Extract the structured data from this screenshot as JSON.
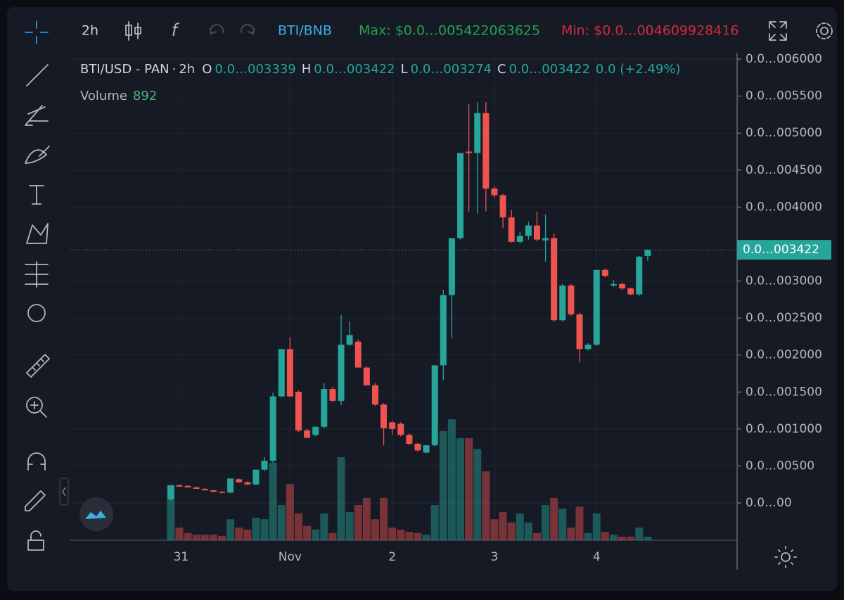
{
  "toolbar": {
    "interval": "2h",
    "pair": "BTI/BNB",
    "max": "Max: $0.0…005422063625",
    "min": "Min: $0.0…004609928416"
  },
  "legend": {
    "symbol": "BTI/USD - PAN",
    "interval": "2h",
    "open_label": "O",
    "open": "0.0…003339",
    "high_label": "H",
    "high": "0.0…003422",
    "low_label": "L",
    "low": "0.0…003274",
    "close_label": "C",
    "close": "0.0…003422",
    "change": "0.0 (+2.49%)",
    "volume_label": "Volume"
  },
  "chart_data": {
    "type": "candlestick",
    "open": [
      5e-05,
      0.00024,
      0.00023,
      0.00021,
      0.00019,
      0.00017,
      0.00015,
      0.00014,
      0.00032,
      0.00028,
      0.00025,
      0.00045,
      0.00057,
      0.00144,
      0.00208,
      0.0015,
      0.00098,
      0.00092,
      0.00103,
      0.00154,
      0.00138,
      0.00214,
      0.00218,
      0.00183,
      0.00159,
      0.00133,
      0.00109,
      0.00107,
      0.00092,
      0.0008,
      0.00068,
      0.00078,
      0.00186,
      0.00281,
      0.00358,
      0.00475,
      0.00473,
      0.00527,
      0.00425,
      0.00416,
      0.00386,
      0.00353,
      0.00361,
      0.00375,
      0.00355,
      0.00358,
      0.00247,
      0.00294,
      0.00255,
      0.00208,
      0.00214,
      0.00315,
      0.00294,
      0.00296,
      0.0029,
      0.00282,
      0.003339
    ],
    "high": [
      0.00024,
      0.00025,
      0.00024,
      0.00022,
      0.0002,
      0.00018,
      0.00016,
      0.00033,
      0.00033,
      0.00029,
      0.00045,
      0.00062,
      0.00149,
      0.00208,
      0.00224,
      0.00152,
      0.001,
      0.00103,
      0.00162,
      0.00157,
      0.00254,
      0.00246,
      0.00221,
      0.00185,
      0.00162,
      0.00135,
      0.00111,
      0.00109,
      0.00094,
      0.00081,
      0.00078,
      0.00186,
      0.00288,
      0.00358,
      0.00473,
      0.00539,
      0.00542,
      0.00542,
      0.00428,
      0.00418,
      0.00396,
      0.00366,
      0.0038,
      0.00394,
      0.0039,
      0.00364,
      0.00296,
      0.00296,
      0.00257,
      0.00216,
      0.00315,
      0.00317,
      0.00301,
      0.00298,
      0.00291,
      0.00334,
      0.003422
    ],
    "low": [
      3e-05,
      0.00022,
      0.00021,
      0.00019,
      0.00017,
      0.00015,
      0.00013,
      0.00013,
      0.00027,
      0.00024,
      0.00024,
      0.00043,
      0.00054,
      0.00143,
      0.00143,
      0.00096,
      0.00088,
      0.0009,
      0.00101,
      0.00136,
      0.00132,
      0.00212,
      0.00183,
      0.00159,
      0.00131,
      0.00078,
      0.00092,
      0.0009,
      0.00078,
      0.00069,
      0.00067,
      0.00076,
      0.00166,
      0.00223,
      0.00356,
      0.00394,
      0.00391,
      0.00394,
      0.00413,
      0.00372,
      0.00352,
      0.00351,
      0.00356,
      0.00354,
      0.00326,
      0.00245,
      0.00245,
      0.00253,
      0.0019,
      0.00206,
      0.00212,
      0.00305,
      0.00292,
      0.00288,
      0.00281,
      0.0028,
      0.003274
    ],
    "close": [
      0.00024,
      0.00022,
      0.00021,
      0.00019,
      0.00017,
      0.00015,
      0.00014,
      0.00033,
      0.00028,
      0.00025,
      0.00045,
      0.00057,
      0.00144,
      0.00208,
      0.00144,
      0.00098,
      0.00088,
      0.00103,
      0.00154,
      0.00138,
      0.00214,
      0.00227,
      0.00183,
      0.00159,
      0.00133,
      0.00101,
      0.001,
      0.00092,
      0.0008,
      0.00071,
      0.00078,
      0.00186,
      0.00281,
      0.00358,
      0.00473,
      0.00473,
      0.00527,
      0.00425,
      0.00416,
      0.00386,
      0.00353,
      0.00361,
      0.00375,
      0.00356,
      0.00358,
      0.00247,
      0.00294,
      0.00255,
      0.00208,
      0.00214,
      0.00315,
      0.00307,
      0.00296,
      0.0029,
      0.00282,
      0.00333,
      0.003422
    ],
    "volume": [
      13900,
      3200,
      1800,
      1400,
      1400,
      1400,
      1100,
      5300,
      3200,
      2700,
      5700,
      5300,
      19600,
      8900,
      14200,
      6800,
      3600,
      2700,
      6800,
      1800,
      21000,
      7100,
      8900,
      10700,
      5300,
      10700,
      3200,
      2700,
      2100,
      1800,
      1400,
      8900,
      27600,
      30600,
      25800,
      25800,
      23100,
      17400,
      5300,
      7100,
      4500,
      6800,
      4500,
      1800,
      8900,
      10700,
      8000,
      3200,
      8500,
      1800,
      6800,
      2100,
      1400,
      900,
      900,
      3200,
      892
    ],
    "up_color": "#26a69a",
    "down_color": "#ef5350",
    "ylim": [
      -0.000504,
      0.006086
    ],
    "yticks": [
      {
        "value": 0.006,
        "label": "0.0…006000"
      },
      {
        "value": 0.0055,
        "label": "0.0…005500"
      },
      {
        "value": 0.005,
        "label": "0.0…005000"
      },
      {
        "value": 0.0045,
        "label": "0.0…004500"
      },
      {
        "value": 0.004,
        "label": "0.0…004000"
      },
      {
        "value": 0.003,
        "label": "0.0…003000"
      },
      {
        "value": 0.0025,
        "label": "0.0…002500"
      },
      {
        "value": 0.002,
        "label": "0.0…002000"
      },
      {
        "value": 0.0015,
        "label": "0.0…001500"
      },
      {
        "value": 0.001,
        "label": "0.0…001000"
      },
      {
        "value": 0.0005,
        "label": "0.0…00500"
      },
      {
        "value": 0,
        "label": "0.0…00"
      }
    ],
    "xlim": [
      -11.8,
      66.5
    ],
    "xticks": [
      {
        "value": 1.2,
        "label": "31"
      },
      {
        "value": 14,
        "label": "Nov"
      },
      {
        "value": 26,
        "label": "2"
      },
      {
        "value": 38,
        "label": "3"
      },
      {
        "value": 50,
        "label": "4"
      }
    ],
    "grid": true,
    "last_price": {
      "value": 0.003422,
      "label": "0.0…003422"
    }
  }
}
